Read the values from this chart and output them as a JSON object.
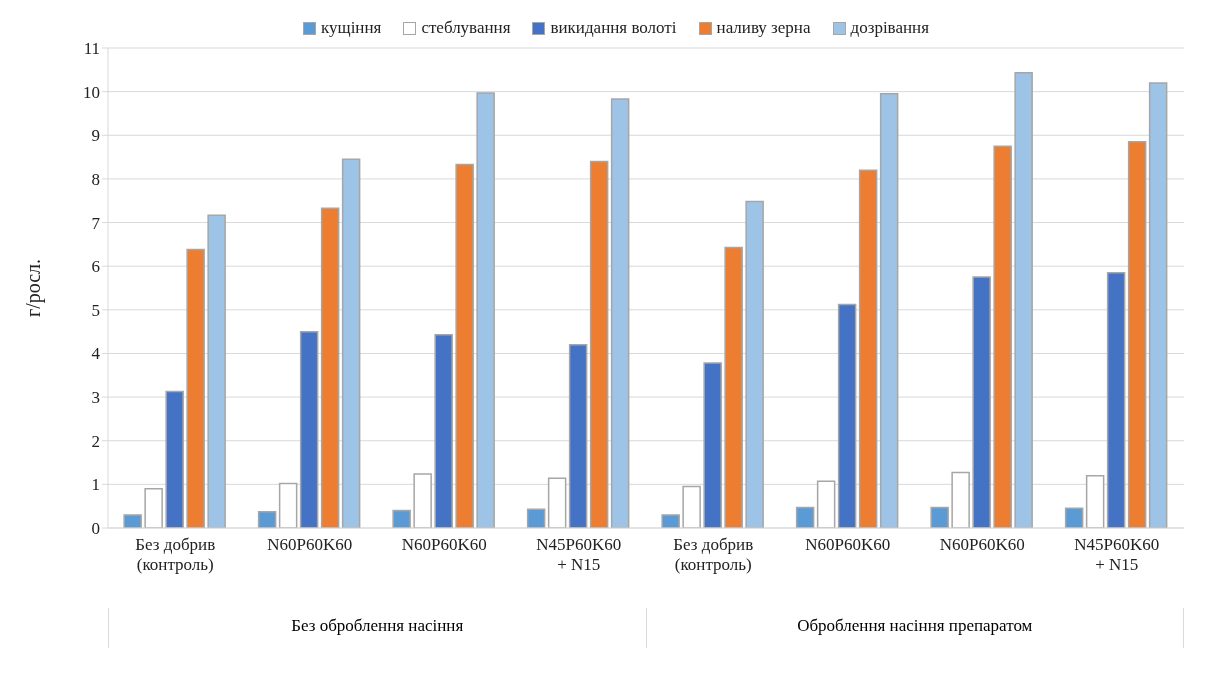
{
  "chart_data": {
    "type": "bar",
    "ylabel": "г/росл.",
    "categories": [
      "Без добрив (контроль)",
      "N60P60K60",
      "N60P60K60",
      "N45P60K60 + N15",
      "Без добрив (контроль)",
      "N60P60K60",
      "N60P60K60",
      "N45P60K60 + N15"
    ],
    "series": [
      {
        "name": "кущіння",
        "color": "#5b9bd5",
        "values": [
          0.3,
          0.37,
          0.4,
          0.43,
          0.3,
          0.47,
          0.47,
          0.45
        ]
      },
      {
        "name": "стеблування",
        "color": "#ffffff",
        "values": [
          0.9,
          1.02,
          1.24,
          1.14,
          0.95,
          1.07,
          1.27,
          1.2
        ]
      },
      {
        "name": "викидання волоті",
        "color": "#4472c4",
        "values": [
          3.13,
          4.5,
          4.43,
          4.2,
          3.78,
          5.12,
          5.75,
          5.85
        ]
      },
      {
        "name": "наливу зерна",
        "color": "#ed7d31",
        "values": [
          6.38,
          7.33,
          8.33,
          8.4,
          6.43,
          8.2,
          8.75,
          8.85
        ]
      },
      {
        "name": "дозрівання",
        "color": "#9dc3e6",
        "values": [
          7.17,
          8.45,
          9.97,
          9.83,
          7.48,
          9.95,
          10.43,
          10.2
        ]
      }
    ],
    "ylim": [
      0,
      11
    ],
    "yticks": [
      0,
      1,
      2,
      3,
      4,
      5,
      6,
      7,
      8,
      9,
      10,
      11
    ],
    "grid": "y",
    "legend": "top",
    "annotations": [
      "Без оброблення насіння",
      "Оброблення насіння препаратом"
    ]
  }
}
